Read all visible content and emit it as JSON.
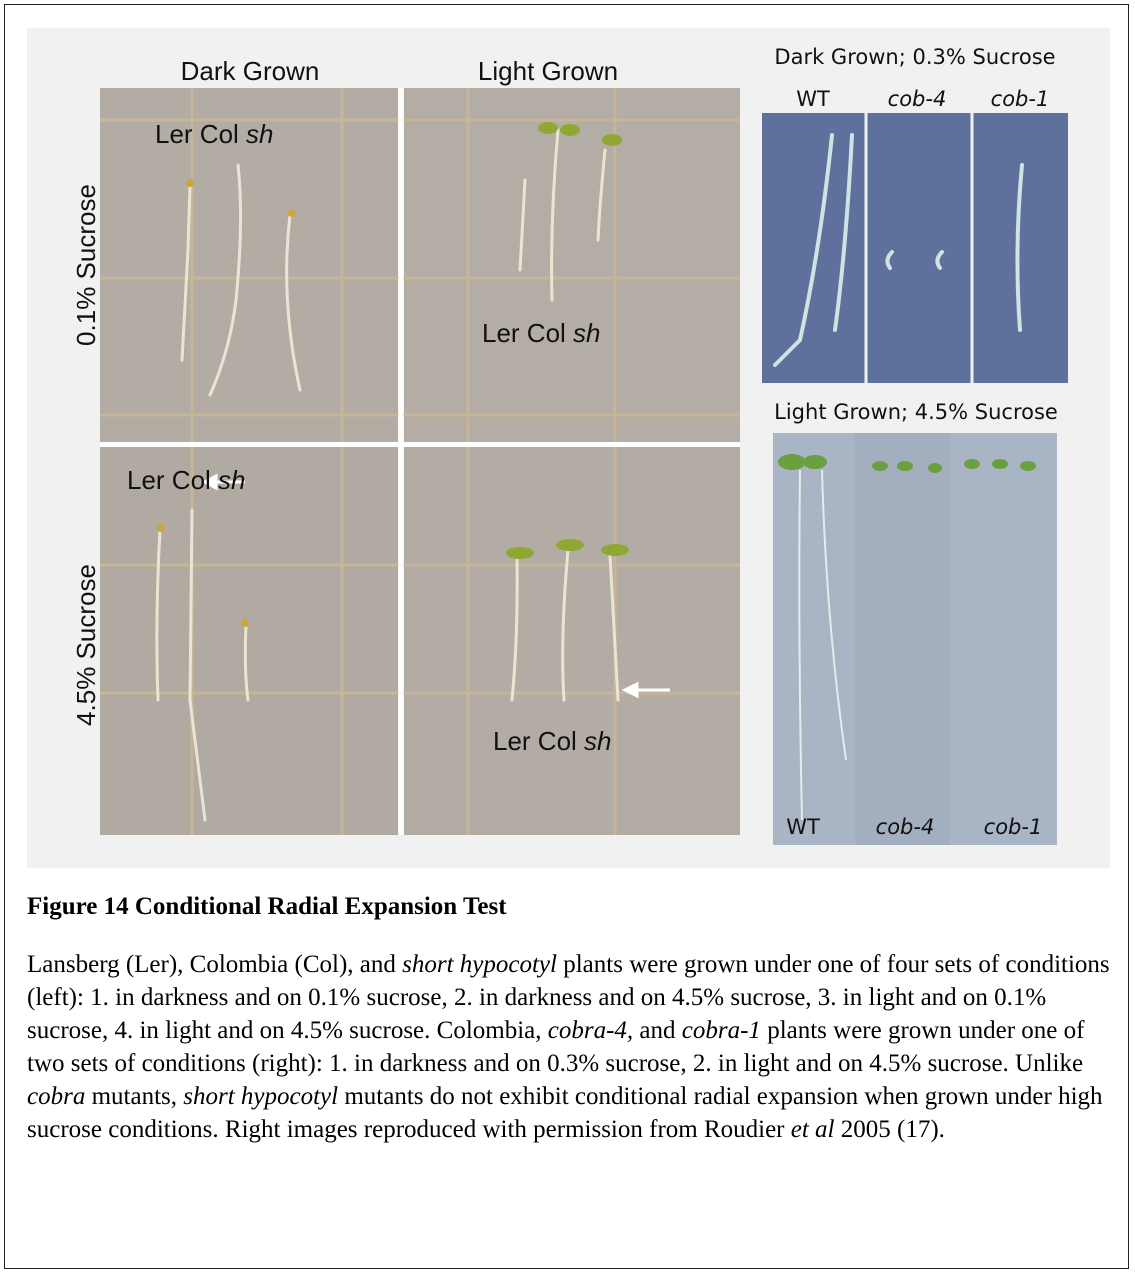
{
  "figure": {
    "columns": [
      "Dark Grown",
      "Light Grown"
    ],
    "rows": [
      "0.1% Sucrose",
      "4.5% Sucrose"
    ],
    "left_panels": [
      {
        "label": [
          "Ler Col ",
          "sh"
        ]
      },
      {
        "label": [
          "Ler Col ",
          "sh"
        ]
      },
      {
        "label": [
          "Ler Col ",
          "sh"
        ]
      },
      {
        "label": [
          "Ler Col ",
          "sh"
        ]
      }
    ],
    "right_top": {
      "title": "Dark Grown; 0.3% Sucrose",
      "lanes": [
        "WT",
        "cob-4",
        "cob-1"
      ]
    },
    "right_bottom": {
      "title": "Light Grown; 4.5% Sucrose",
      "lanes": [
        "WT",
        "cob-4",
        "cob-1"
      ]
    }
  },
  "caption": {
    "title": "Figure 14 Conditional Radial Expansion Test",
    "body": [
      "Lansberg (Ler), Colombia (Col), and ",
      "short hypocotyl",
      " plants were grown under one of four sets of conditions (left): 1. in darkness and on 0.1% sucrose, 2. in darkness and on 4.5% sucrose, 3. in light and on 0.1% sucrose, 4. in light and on 4.5% sucrose. Colombia, ",
      "cobra-4,",
      " and ",
      "cobra-1",
      " plants were grown under one of two sets of conditions (right): 1. in darkness and on 0.3% sucrose, 2. in light and on 4.5% sucrose. Unlike ",
      "cobra",
      " mutants, ",
      "short hypocotyl",
      " mutants do not exhibit conditional radial expansion when grown under high sucrose conditions. Right images reproduced with permission from Roudier ",
      "et al",
      " 2005 (17)."
    ]
  }
}
